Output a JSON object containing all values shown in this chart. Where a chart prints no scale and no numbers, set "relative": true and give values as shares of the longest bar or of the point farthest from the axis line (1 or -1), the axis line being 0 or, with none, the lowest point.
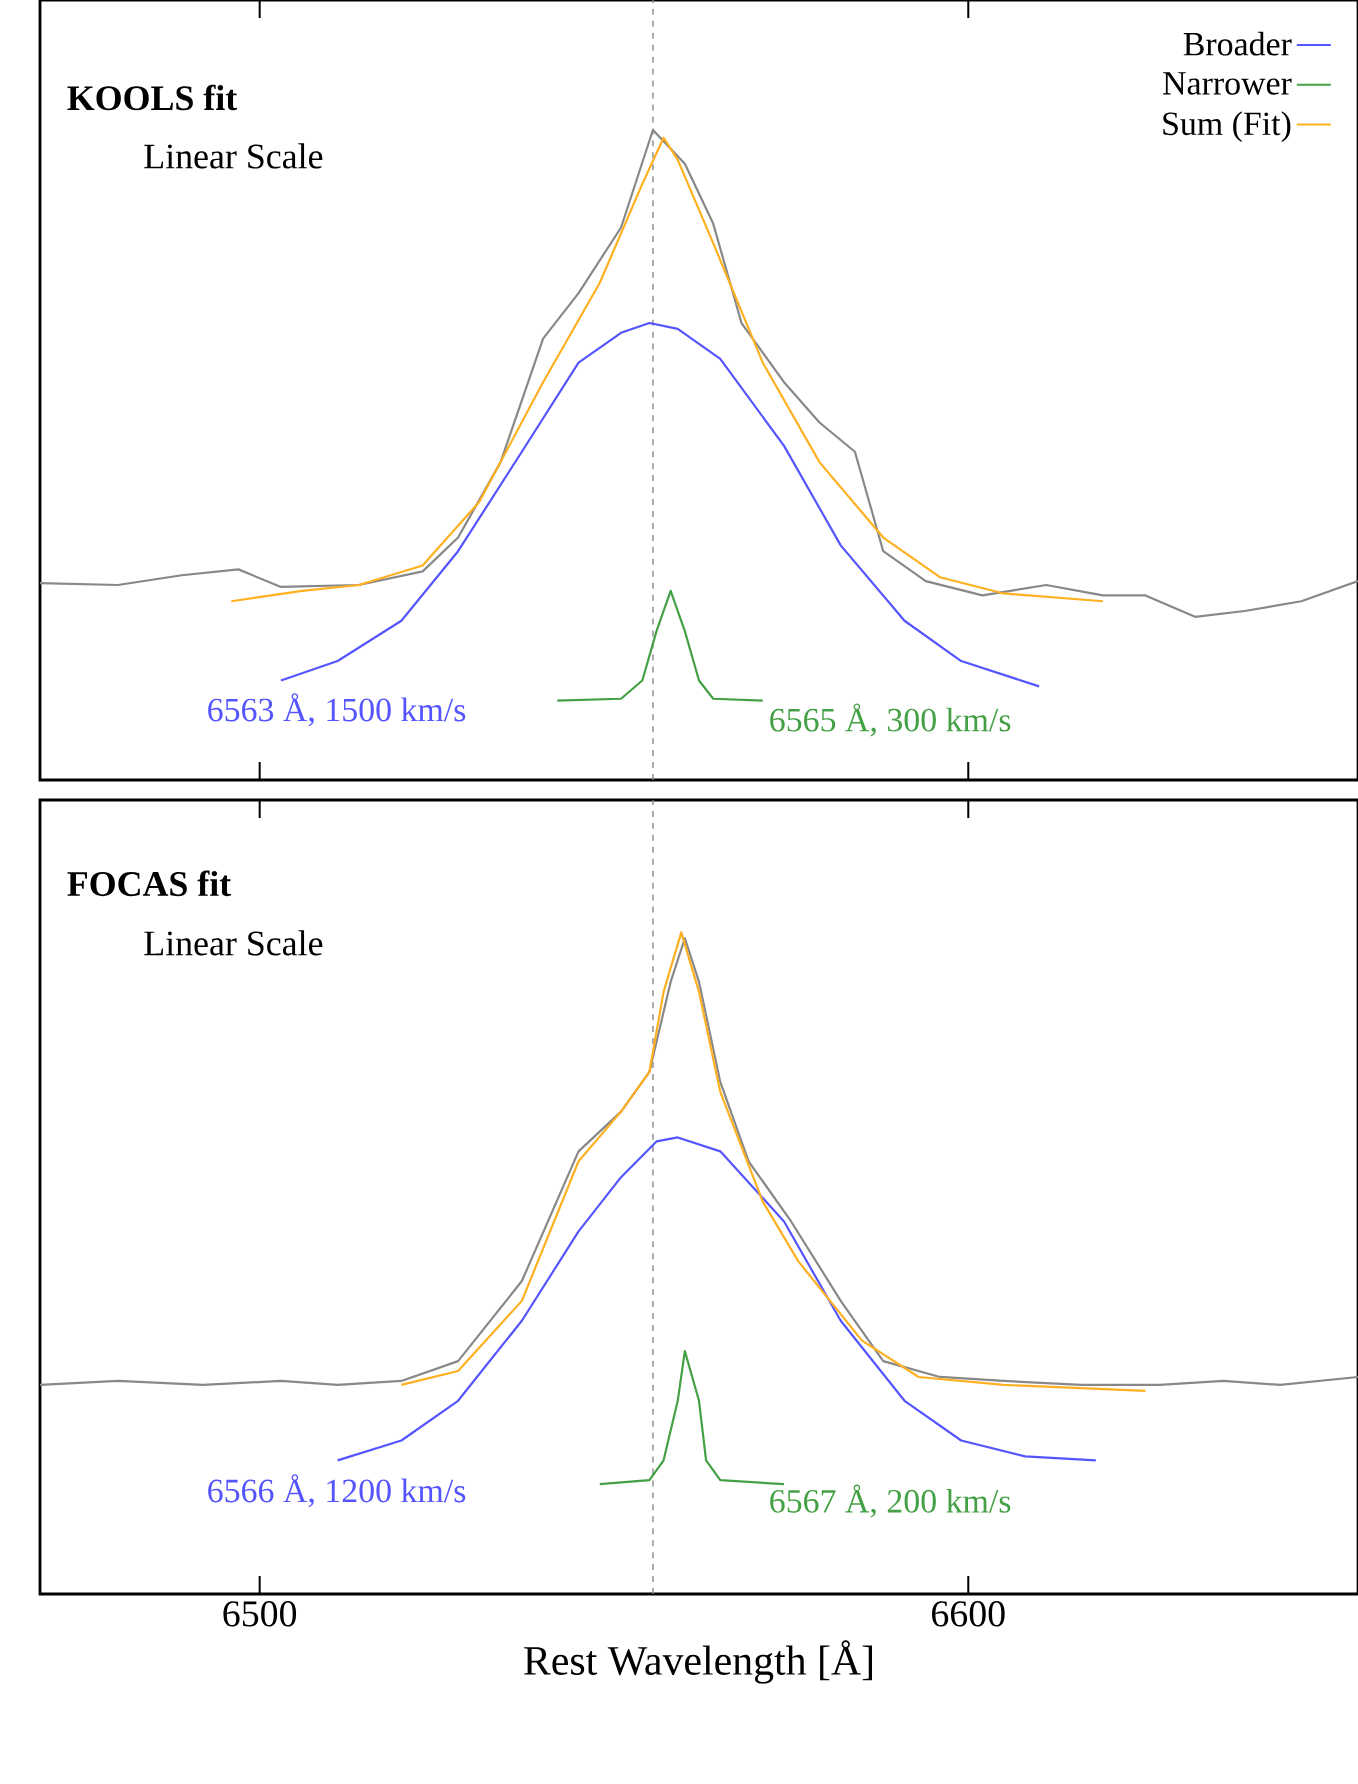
{
  "chart_data": [
    {
      "type": "line",
      "relative": true,
      "xlim": [
        6469,
        6655
      ],
      "xticks": [
        6500,
        6600
      ],
      "tick_labels": false,
      "legend": "top right",
      "ref_lines": [
        {
          "axis": "x",
          "value": 6555.5,
          "color": "#888888",
          "line_style": "dashed"
        }
      ],
      "annotations": [
        "**KOOLS fit**",
        "Linear Scale",
        "6563 Å, 1500 km/s",
        "6565 Å, 300 km/s"
      ],
      "series": [
        {
          "color": "#888888",
          "x": [
            6469,
            6480,
            6489,
            6497,
            6503,
            6514,
            6523,
            6528,
            6534,
            6540,
            6545,
            6551,
            6555.5,
            6560,
            6564,
            6568,
            6574,
            6579,
            6584,
            6588,
            6594,
            6602,
            6611,
            6619,
            6625,
            6632,
            6639,
            6647,
            6655
          ],
          "values": [
            0.303,
            0.3,
            0.315,
            0.324,
            0.297,
            0.3,
            0.321,
            0.373,
            0.489,
            0.679,
            0.749,
            0.85,
            1.0,
            0.948,
            0.856,
            0.703,
            0.612,
            0.55,
            0.505,
            0.352,
            0.306,
            0.284,
            0.3,
            0.284,
            0.284,
            0.251,
            0.26,
            0.275,
            0.306
          ]
        },
        {
          "name": "Broader",
          "color": "#5555ff",
          "x": [
            6503,
            6511,
            6520,
            6528,
            6537,
            6545,
            6551,
            6555,
            6559,
            6565,
            6574,
            6582,
            6591,
            6599,
            6610
          ],
          "values": [
            0.153,
            0.183,
            0.245,
            0.352,
            0.505,
            0.642,
            0.688,
            0.703,
            0.694,
            0.648,
            0.514,
            0.361,
            0.245,
            0.183,
            0.144
          ]
        },
        {
          "name": "Narrower",
          "color": "#44a044",
          "x": [
            6542,
            6551,
            6554,
            6556,
            6558,
            6560,
            6562,
            6564,
            6571
          ],
          "values": [
            0.122,
            0.125,
            0.153,
            0.229,
            0.291,
            0.229,
            0.153,
            0.125,
            0.122
          ]
        },
        {
          "name": "Sum (Fit)",
          "color": "#ffb020",
          "x": [
            6496,
            6506,
            6514,
            6523,
            6531,
            6540,
            6548,
            6554,
            6557,
            6559,
            6564,
            6571,
            6579,
            6588,
            6596,
            6605,
            6619
          ],
          "values": [
            0.275,
            0.291,
            0.3,
            0.33,
            0.428,
            0.612,
            0.765,
            0.917,
            0.988,
            0.954,
            0.826,
            0.642,
            0.489,
            0.373,
            0.312,
            0.287,
            0.275
          ]
        }
      ]
    },
    {
      "type": "line",
      "relative": true,
      "xlim": [
        6469,
        6655
      ],
      "xticks": [
        6500,
        6600
      ],
      "xlabel": "Rest Wavelength [Å]",
      "ref_lines": [
        {
          "axis": "x",
          "value": 6555.5,
          "color": "#888888",
          "line_style": "dashed"
        }
      ],
      "annotations": [
        "**FOCAS fit**",
        "Linear Scale",
        "6566 Å, 1200 km/s",
        "6567 Å, 200 km/s"
      ],
      "series": [
        {
          "color": "#888888",
          "x": [
            6469,
            6480,
            6492,
            6503,
            6511,
            6520,
            6528,
            6537,
            6545,
            6551,
            6555,
            6558,
            6560,
            6562,
            6565,
            6569,
            6575,
            6582,
            6588,
            6596,
            6605,
            6616,
            6627,
            6636,
            6644,
            6655
          ],
          "values": [
            0.316,
            0.322,
            0.316,
            0.322,
            0.316,
            0.322,
            0.352,
            0.473,
            0.669,
            0.729,
            0.789,
            0.925,
            0.991,
            0.925,
            0.774,
            0.654,
            0.563,
            0.443,
            0.352,
            0.328,
            0.322,
            0.316,
            0.316,
            0.322,
            0.316,
            0.328
          ]
        },
        {
          "color": "#5555ff",
          "x": [
            6511,
            6520,
            6528,
            6537,
            6545,
            6551,
            6556,
            6559,
            6565,
            6574,
            6582,
            6591,
            6599,
            6608,
            6618
          ],
          "values": [
            0.202,
            0.232,
            0.292,
            0.413,
            0.548,
            0.63,
            0.684,
            0.69,
            0.669,
            0.563,
            0.413,
            0.292,
            0.232,
            0.208,
            0.202
          ]
        },
        {
          "color": "#44a044",
          "x": [
            6548,
            6555,
            6557,
            6559,
            6560,
            6562,
            6563,
            6565,
            6574
          ],
          "values": [
            0.166,
            0.172,
            0.202,
            0.292,
            0.367,
            0.292,
            0.202,
            0.172,
            0.166
          ]
        },
        {
          "color": "#ffb020",
          "x": [
            6520,
            6528,
            6537,
            6545,
            6551,
            6555,
            6557,
            6559.5,
            6562,
            6565,
            6571,
            6576,
            6585,
            6593,
            6605,
            6625
          ],
          "values": [
            0.316,
            0.337,
            0.443,
            0.654,
            0.729,
            0.789,
            0.91,
            1.0,
            0.91,
            0.759,
            0.593,
            0.503,
            0.383,
            0.328,
            0.316,
            0.307
          ]
        }
      ]
    }
  ]
}
